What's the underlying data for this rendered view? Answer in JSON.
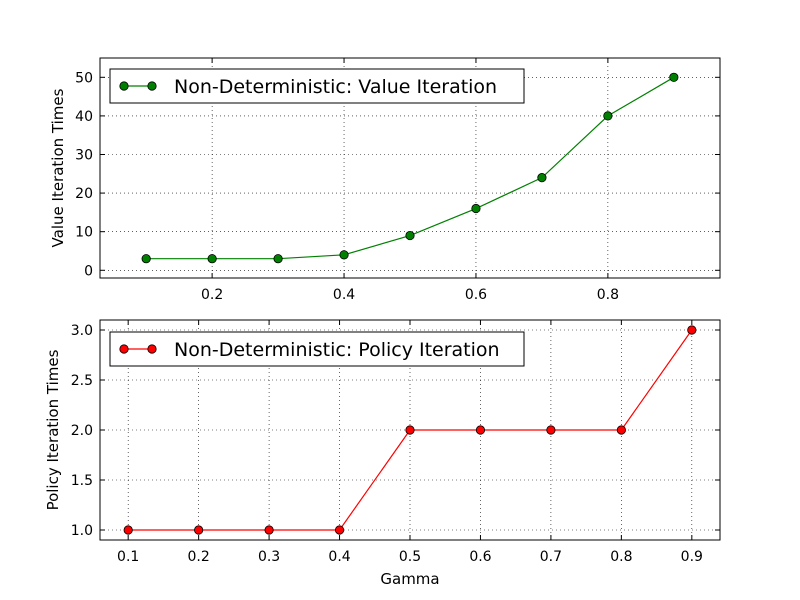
{
  "chart_data": [
    {
      "type": "line",
      "title": "",
      "xlabel": "",
      "ylabel": "Value Iteration Times",
      "x": [
        0.1,
        0.2,
        0.3,
        0.4,
        0.5,
        0.6,
        0.7,
        0.8,
        0.9
      ],
      "series": [
        {
          "name": "Non-Deterministic: Value Iteration",
          "color": "#008000",
          "marker": "circle",
          "values": [
            3,
            3,
            3,
            4,
            9,
            16,
            24,
            40,
            50
          ]
        }
      ],
      "xlim": [
        0.03,
        0.97
      ],
      "ylim": [
        -2,
        55
      ],
      "xticks": [
        0.2,
        0.4,
        0.6,
        0.8
      ],
      "xtick_labels": [
        "0.2",
        "0.4",
        "0.6",
        "0.8"
      ],
      "yticks": [
        0,
        10,
        20,
        30,
        40,
        50
      ],
      "ytick_labels": [
        "0",
        "10",
        "20",
        "30",
        "40",
        "50"
      ],
      "grid": true,
      "legend_position": "top-left"
    },
    {
      "type": "line",
      "title": "",
      "xlabel": "Gamma",
      "ylabel": "Policy Iteration Times",
      "x": [
        0.1,
        0.2,
        0.3,
        0.4,
        0.5,
        0.6,
        0.7,
        0.8,
        0.9
      ],
      "series": [
        {
          "name": "Non-Deterministic: Policy Iteration",
          "color": "#ff0000",
          "marker": "circle",
          "values": [
            1,
            1,
            1,
            1,
            2,
            2,
            2,
            2,
            3
          ]
        }
      ],
      "xlim": [
        0.06,
        0.94
      ],
      "ylim": [
        0.9,
        3.1
      ],
      "xticks": [
        0.1,
        0.2,
        0.3,
        0.4,
        0.5,
        0.6,
        0.7,
        0.8,
        0.9
      ],
      "xtick_labels": [
        "0.1",
        "0.2",
        "0.3",
        "0.4",
        "0.5",
        "0.6",
        "0.7",
        "0.8",
        "0.9"
      ],
      "yticks": [
        1.0,
        1.5,
        2.0,
        2.5,
        3.0
      ],
      "ytick_labels": [
        "1.0",
        "1.5",
        "2.0",
        "2.5",
        "3.0"
      ],
      "grid": true,
      "legend_position": "top-left"
    }
  ]
}
